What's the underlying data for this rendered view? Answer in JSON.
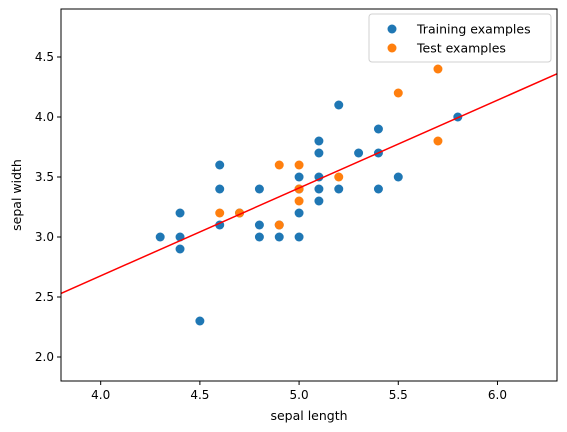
{
  "chart_data": {
    "type": "scatter",
    "xlabel": "sepal length",
    "ylabel": "sepal width",
    "xlim": [
      3.8,
      6.3
    ],
    "ylim": [
      1.8,
      4.9
    ],
    "xticks": [
      "4.0",
      "4.5",
      "5.0",
      "5.5",
      "6.0"
    ],
    "yticks": [
      "2.0",
      "2.5",
      "3.0",
      "3.5",
      "4.0",
      "4.5"
    ],
    "grid": false,
    "legend_position": "top-right",
    "series": [
      {
        "name": "Training examples",
        "color": "#1f77b4",
        "points": [
          [
            4.3,
            3.0
          ],
          [
            4.4,
            3.0
          ],
          [
            4.4,
            3.2
          ],
          [
            4.4,
            2.9
          ],
          [
            4.5,
            2.3
          ],
          [
            4.6,
            3.1
          ],
          [
            4.6,
            3.4
          ],
          [
            4.6,
            3.6
          ],
          [
            4.7,
            3.2
          ],
          [
            4.8,
            3.0
          ],
          [
            4.8,
            3.1
          ],
          [
            4.8,
            3.4
          ],
          [
            4.9,
            3.0
          ],
          [
            4.9,
            3.1
          ],
          [
            5.0,
            3.0
          ],
          [
            5.0,
            3.2
          ],
          [
            5.0,
            3.4
          ],
          [
            5.0,
            3.5
          ],
          [
            5.1,
            3.3
          ],
          [
            5.1,
            3.4
          ],
          [
            5.1,
            3.5
          ],
          [
            5.1,
            3.7
          ],
          [
            5.1,
            3.8
          ],
          [
            5.2,
            3.4
          ],
          [
            5.2,
            4.1
          ],
          [
            5.3,
            3.7
          ],
          [
            5.4,
            3.4
          ],
          [
            5.4,
            3.7
          ],
          [
            5.4,
            3.9
          ],
          [
            5.5,
            3.5
          ],
          [
            5.8,
            4.0
          ]
        ]
      },
      {
        "name": "Test examples",
        "color": "#ff7f0e",
        "points": [
          [
            4.6,
            3.2
          ],
          [
            4.7,
            3.2
          ],
          [
            4.9,
            3.1
          ],
          [
            4.9,
            3.6
          ],
          [
            5.0,
            3.3
          ],
          [
            5.0,
            3.4
          ],
          [
            5.0,
            3.6
          ],
          [
            5.2,
            3.5
          ],
          [
            5.5,
            4.2
          ],
          [
            5.7,
            3.8
          ],
          [
            5.7,
            4.4
          ]
        ]
      }
    ],
    "fit_line": {
      "color": "#ff0000",
      "points": [
        [
          3.8,
          2.53
        ],
        [
          6.3,
          4.36
        ]
      ]
    }
  }
}
